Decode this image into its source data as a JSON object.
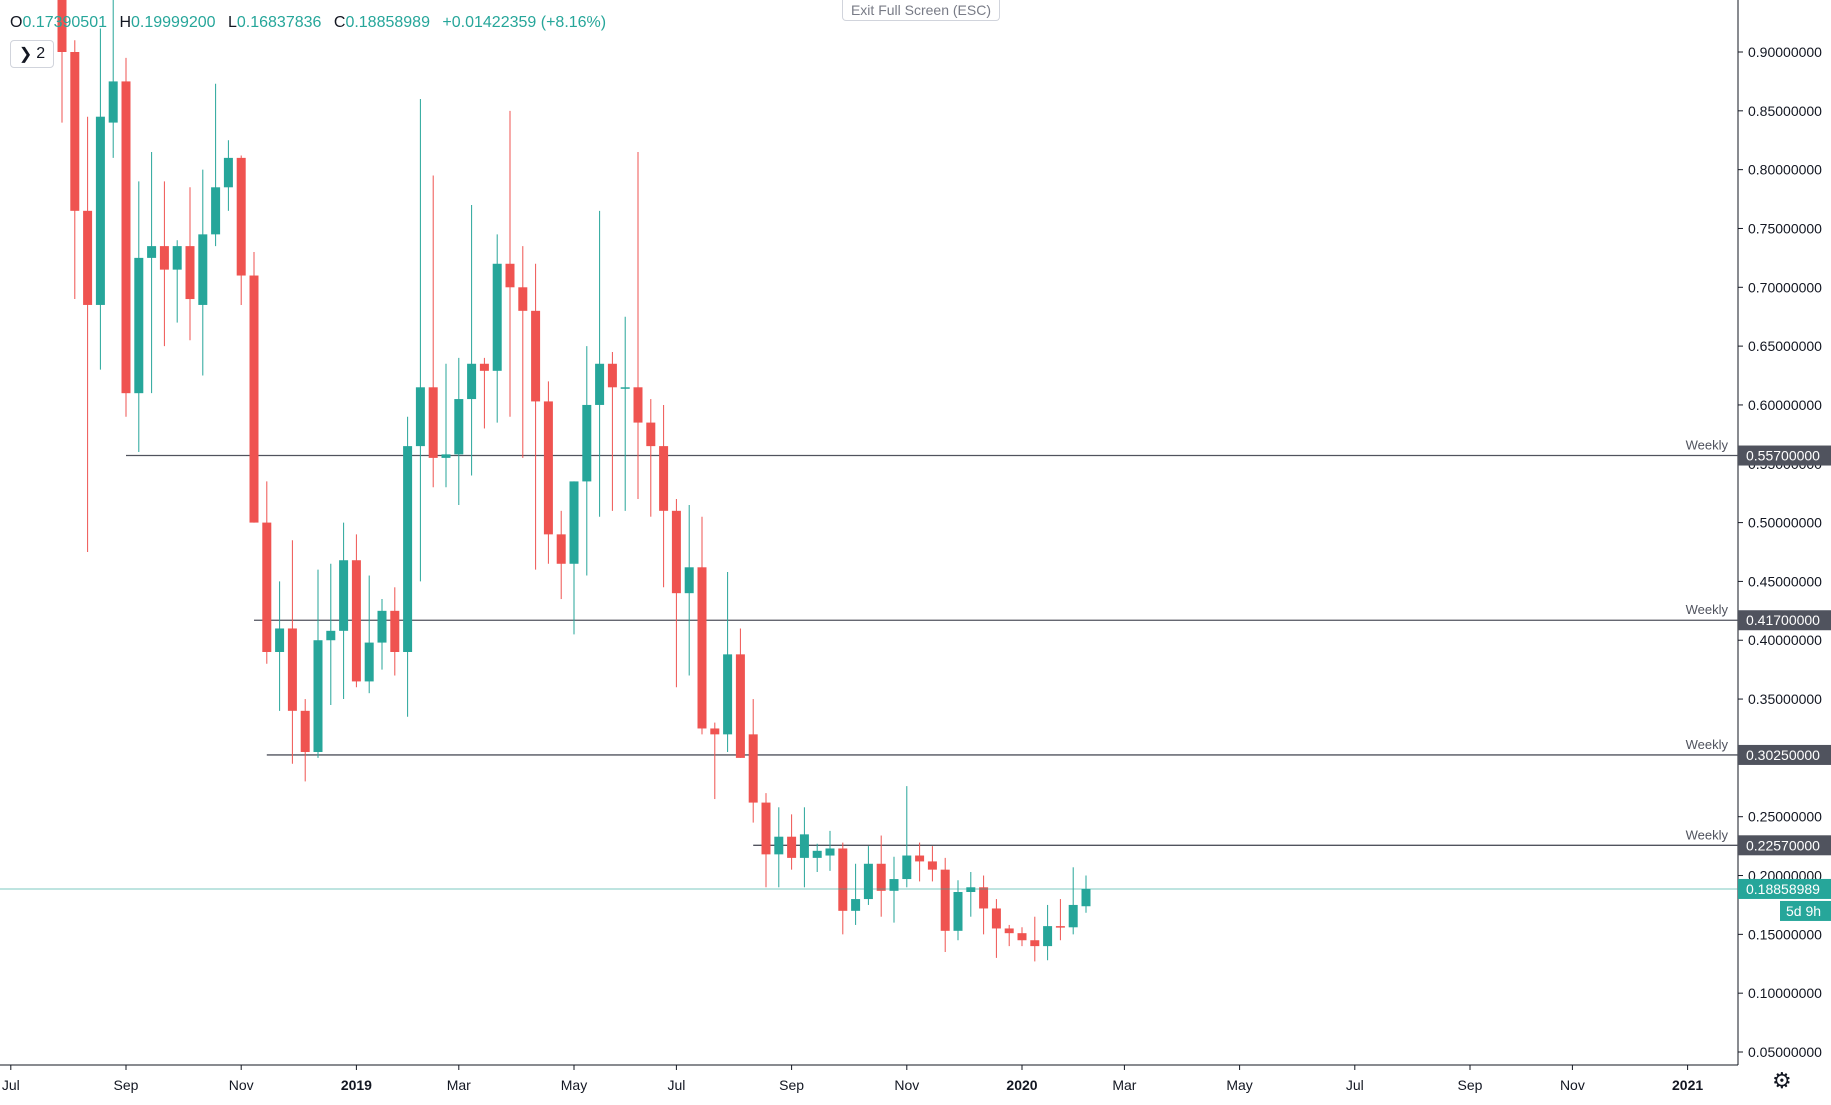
{
  "ohlc": {
    "open_key": "O",
    "open": "0.17390501",
    "high_key": "H",
    "high": "0.19999200",
    "low_key": "L",
    "low": "0.16837836",
    "close_key": "C",
    "close": "0.18858989",
    "change": "+0.01422359 (+8.16%)"
  },
  "controls": {
    "collapse_label": "2",
    "exit_fullscreen": "Exit Full Screen (ESC)"
  },
  "colors": {
    "up": "#26a69a",
    "down": "#ef5350",
    "level_line": "#50535e",
    "price_line": "#26a69a"
  },
  "chart_data": {
    "type": "candlestick",
    "interval": "weekly",
    "ylim": [
      0.04,
      0.93
    ],
    "y_ticks": [
      "0.05000000",
      "0.10000000",
      "0.15000000",
      "0.20000000",
      "0.25000000",
      "0.30000000",
      "0.35000000",
      "0.40000000",
      "0.45000000",
      "0.50000000",
      "0.55000000",
      "0.60000000",
      "0.65000000",
      "0.70000000",
      "0.75000000",
      "0.80000000",
      "0.85000000",
      "0.90000000"
    ],
    "x_ticks": [
      {
        "label": "Jul",
        "i": -4
      },
      {
        "label": "Sep",
        "i": 5
      },
      {
        "label": "Nov",
        "i": 14
      },
      {
        "label": "2019",
        "i": 23
      },
      {
        "label": "Mar",
        "i": 31
      },
      {
        "label": "May",
        "i": 40
      },
      {
        "label": "Jul",
        "i": 48
      },
      {
        "label": "Sep",
        "i": 57
      },
      {
        "label": "Nov",
        "i": 66
      },
      {
        "label": "2020",
        "i": 75
      },
      {
        "label": "Mar",
        "i": 83
      },
      {
        "label": "May",
        "i": 92
      },
      {
        "label": "Jul",
        "i": 101
      },
      {
        "label": "Sep",
        "i": 110
      },
      {
        "label": "Nov",
        "i": 118
      },
      {
        "label": "2021",
        "i": 127
      }
    ],
    "candles": [
      [
        0.97,
        0.99,
        0.84,
        0.9
      ],
      [
        0.9,
        0.91,
        0.69,
        0.765
      ],
      [
        0.765,
        0.845,
        0.475,
        0.685
      ],
      [
        0.685,
        0.92,
        0.63,
        0.845
      ],
      [
        0.84,
        0.98,
        0.81,
        0.875
      ],
      [
        0.875,
        0.895,
        0.59,
        0.61
      ],
      [
        0.61,
        0.79,
        0.56,
        0.725
      ],
      [
        0.725,
        0.815,
        0.61,
        0.735
      ],
      [
        0.735,
        0.79,
        0.65,
        0.715
      ],
      [
        0.715,
        0.74,
        0.67,
        0.735
      ],
      [
        0.735,
        0.785,
        0.655,
        0.69
      ],
      [
        0.685,
        0.8,
        0.625,
        0.745
      ],
      [
        0.745,
        0.873,
        0.735,
        0.785
      ],
      [
        0.785,
        0.825,
        0.765,
        0.81
      ],
      [
        0.81,
        0.812,
        0.685,
        0.71
      ],
      [
        0.71,
        0.73,
        0.5,
        0.5
      ],
      [
        0.5,
        0.535,
        0.38,
        0.39
      ],
      [
        0.39,
        0.45,
        0.34,
        0.41
      ],
      [
        0.41,
        0.485,
        0.295,
        0.34
      ],
      [
        0.34,
        0.35,
        0.28,
        0.305
      ],
      [
        0.305,
        0.46,
        0.3,
        0.4
      ],
      [
        0.4,
        0.465,
        0.345,
        0.408
      ],
      [
        0.408,
        0.5,
        0.35,
        0.468
      ],
      [
        0.468,
        0.49,
        0.36,
        0.365
      ],
      [
        0.365,
        0.455,
        0.355,
        0.398
      ],
      [
        0.398,
        0.435,
        0.375,
        0.425
      ],
      [
        0.425,
        0.445,
        0.37,
        0.39
      ],
      [
        0.39,
        0.59,
        0.335,
        0.565
      ],
      [
        0.565,
        0.86,
        0.45,
        0.615
      ],
      [
        0.615,
        0.795,
        0.53,
        0.555
      ],
      [
        0.555,
        0.635,
        0.53,
        0.558
      ],
      [
        0.558,
        0.64,
        0.515,
        0.605
      ],
      [
        0.605,
        0.77,
        0.54,
        0.635
      ],
      [
        0.635,
        0.64,
        0.58,
        0.629
      ],
      [
        0.629,
        0.745,
        0.585,
        0.72
      ],
      [
        0.72,
        0.85,
        0.59,
        0.7
      ],
      [
        0.7,
        0.735,
        0.555,
        0.68
      ],
      [
        0.68,
        0.72,
        0.46,
        0.603
      ],
      [
        0.603,
        0.62,
        0.465,
        0.49
      ],
      [
        0.49,
        0.51,
        0.435,
        0.465
      ],
      [
        0.465,
        0.535,
        0.405,
        0.535
      ],
      [
        0.535,
        0.65,
        0.455,
        0.6
      ],
      [
        0.6,
        0.765,
        0.505,
        0.635
      ],
      [
        0.635,
        0.645,
        0.51,
        0.615
      ],
      [
        0.615,
        0.675,
        0.51,
        0.615
      ],
      [
        0.615,
        0.815,
        0.52,
        0.585
      ],
      [
        0.585,
        0.605,
        0.505,
        0.565
      ],
      [
        0.565,
        0.6,
        0.445,
        0.51
      ],
      [
        0.51,
        0.52,
        0.36,
        0.44
      ],
      [
        0.44,
        0.515,
        0.37,
        0.462
      ],
      [
        0.462,
        0.505,
        0.32,
        0.325
      ],
      [
        0.325,
        0.33,
        0.265,
        0.32
      ],
      [
        0.32,
        0.458,
        0.305,
        0.388
      ],
      [
        0.388,
        0.41,
        0.3,
        0.3
      ],
      [
        0.32,
        0.35,
        0.245,
        0.262
      ],
      [
        0.262,
        0.27,
        0.19,
        0.218
      ],
      [
        0.218,
        0.258,
        0.19,
        0.233
      ],
      [
        0.233,
        0.252,
        0.205,
        0.215
      ],
      [
        0.215,
        0.258,
        0.19,
        0.235
      ],
      [
        0.215,
        0.227,
        0.203,
        0.221
      ],
      [
        0.217,
        0.238,
        0.204,
        0.223
      ],
      [
        0.223,
        0.228,
        0.15,
        0.17
      ],
      [
        0.17,
        0.21,
        0.158,
        0.18
      ],
      [
        0.18,
        0.225,
        0.175,
        0.21
      ],
      [
        0.21,
        0.234,
        0.165,
        0.187
      ],
      [
        0.187,
        0.216,
        0.16,
        0.197
      ],
      [
        0.197,
        0.276,
        0.19,
        0.217
      ],
      [
        0.217,
        0.228,
        0.195,
        0.212
      ],
      [
        0.212,
        0.225,
        0.195,
        0.205
      ],
      [
        0.205,
        0.215,
        0.135,
        0.153
      ],
      [
        0.153,
        0.196,
        0.145,
        0.186
      ],
      [
        0.186,
        0.203,
        0.165,
        0.19
      ],
      [
        0.19,
        0.2,
        0.15,
        0.172
      ],
      [
        0.172,
        0.18,
        0.13,
        0.155
      ],
      [
        0.155,
        0.158,
        0.14,
        0.151
      ],
      [
        0.151,
        0.156,
        0.14,
        0.145
      ],
      [
        0.145,
        0.165,
        0.127,
        0.14
      ],
      [
        0.14,
        0.175,
        0.128,
        0.157
      ],
      [
        0.157,
        0.18,
        0.145,
        0.156
      ],
      [
        0.156,
        0.207,
        0.15,
        0.175
      ],
      [
        0.1739,
        0.19999,
        0.16838,
        0.18859
      ]
    ],
    "levels": [
      {
        "value": 0.557,
        "label": "0.55700000",
        "name": "Weekly",
        "start": 5
      },
      {
        "value": 0.417,
        "label": "0.41700000",
        "name": "Weekly",
        "start": 15
      },
      {
        "value": 0.3025,
        "label": "0.30250000",
        "name": "Weekly",
        "start": 16
      },
      {
        "value": 0.2257,
        "label": "0.22570000",
        "name": "Weekly",
        "start": 54
      }
    ],
    "current_price": {
      "value": 0.18858989,
      "label": "0.18858989",
      "countdown": "5d 9h"
    }
  }
}
